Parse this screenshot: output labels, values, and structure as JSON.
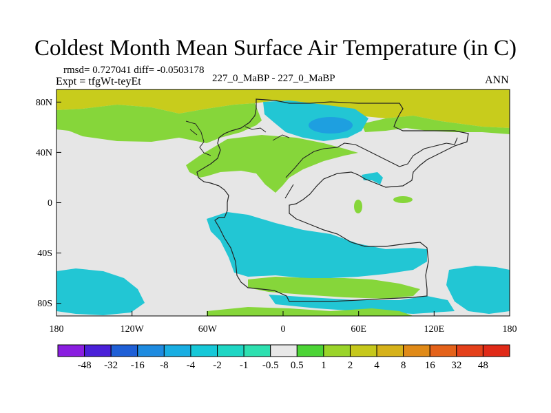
{
  "title": "Coldest Month Mean Surface Air Temperature (in C)",
  "stats": "rmsd= 0.727041 diff= -0.0503178",
  "expt": "Expt = tfgWt-teyEt",
  "center_label": "227_0_MaBP - 227_0_MaBP",
  "season": "ANN",
  "chart_data": {
    "type": "heatmap",
    "title": "Coldest Month Mean Surface Air Temperature (in C)",
    "x_ticks": [
      "180",
      "120W",
      "60W",
      "0",
      "60E",
      "120E",
      "180"
    ],
    "y_ticks": [
      "80N",
      "40N",
      "0",
      "40S",
      "80S"
    ],
    "x_range": [
      -180,
      180
    ],
    "y_range": [
      -90,
      90
    ],
    "colorbar": {
      "labels": [
        "-48",
        "-32",
        "-16",
        "-8",
        "-4",
        "-2",
        "-1",
        "-0.5",
        "0.5",
        "1",
        "2",
        "4",
        "8",
        "16",
        "32",
        "48"
      ],
      "colors": [
        "#8a1ee0",
        "#4a20d8",
        "#1f5fd6",
        "#1e8be0",
        "#19aee2",
        "#17c8d8",
        "#1fd6c4",
        "#2ee0b0",
        "#e8e8e8",
        "#4cd436",
        "#9ad42a",
        "#c6c81c",
        "#d6b21a",
        "#e08a18",
        "#e4621a",
        "#e4401a",
        "#e02a18"
      ]
    }
  }
}
